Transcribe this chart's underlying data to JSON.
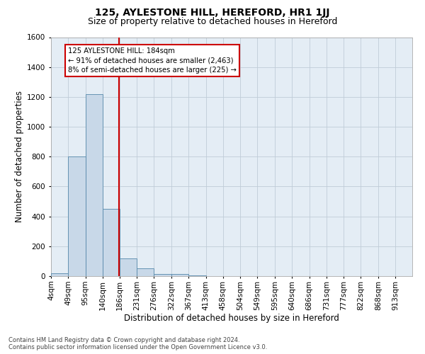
{
  "title1": "125, AYLESTONE HILL, HEREFORD, HR1 1JJ",
  "title2": "Size of property relative to detached houses in Hereford",
  "xlabel": "Distribution of detached houses by size in Hereford",
  "ylabel": "Number of detached properties",
  "footer1": "Contains HM Land Registry data © Crown copyright and database right 2024.",
  "footer2": "Contains public sector information licensed under the Open Government Licence v3.0.",
  "annotation_line1": "125 AYLESTONE HILL: 184sqm",
  "annotation_line2": "← 91% of detached houses are smaller (2,463)",
  "annotation_line3": "8% of semi-detached houses are larger (225) →",
  "bar_color": "#c8d8e8",
  "bar_edge_color": "#5588aa",
  "red_line_color": "#cc0000",
  "grid_color": "#c0ccd8",
  "bg_color": "#e4edf5",
  "categories": [
    "4sqm",
    "49sqm",
    "95sqm",
    "140sqm",
    "186sqm",
    "231sqm",
    "276sqm",
    "322sqm",
    "367sqm",
    "413sqm",
    "458sqm",
    "504sqm",
    "549sqm",
    "595sqm",
    "640sqm",
    "686sqm",
    "731sqm",
    "777sqm",
    "822sqm",
    "868sqm",
    "913sqm"
  ],
  "values": [
    20,
    800,
    1220,
    450,
    120,
    50,
    15,
    12,
    5,
    2,
    0,
    0,
    0,
    0,
    0,
    0,
    0,
    0,
    0,
    0,
    0
  ],
  "bin_edges": [
    4,
    49,
    95,
    140,
    186,
    231,
    276,
    322,
    367,
    413,
    458,
    504,
    549,
    595,
    640,
    686,
    731,
    777,
    822,
    868,
    913,
    958
  ],
  "ylim": [
    0,
    1600
  ],
  "yticks": [
    0,
    200,
    400,
    600,
    800,
    1000,
    1200,
    1400,
    1600
  ],
  "red_line_x": 184,
  "title1_fontsize": 10,
  "title2_fontsize": 9,
  "xlabel_fontsize": 8.5,
  "ylabel_fontsize": 8.5,
  "tick_fontsize": 7.5,
  "footer_fontsize": 6.0
}
